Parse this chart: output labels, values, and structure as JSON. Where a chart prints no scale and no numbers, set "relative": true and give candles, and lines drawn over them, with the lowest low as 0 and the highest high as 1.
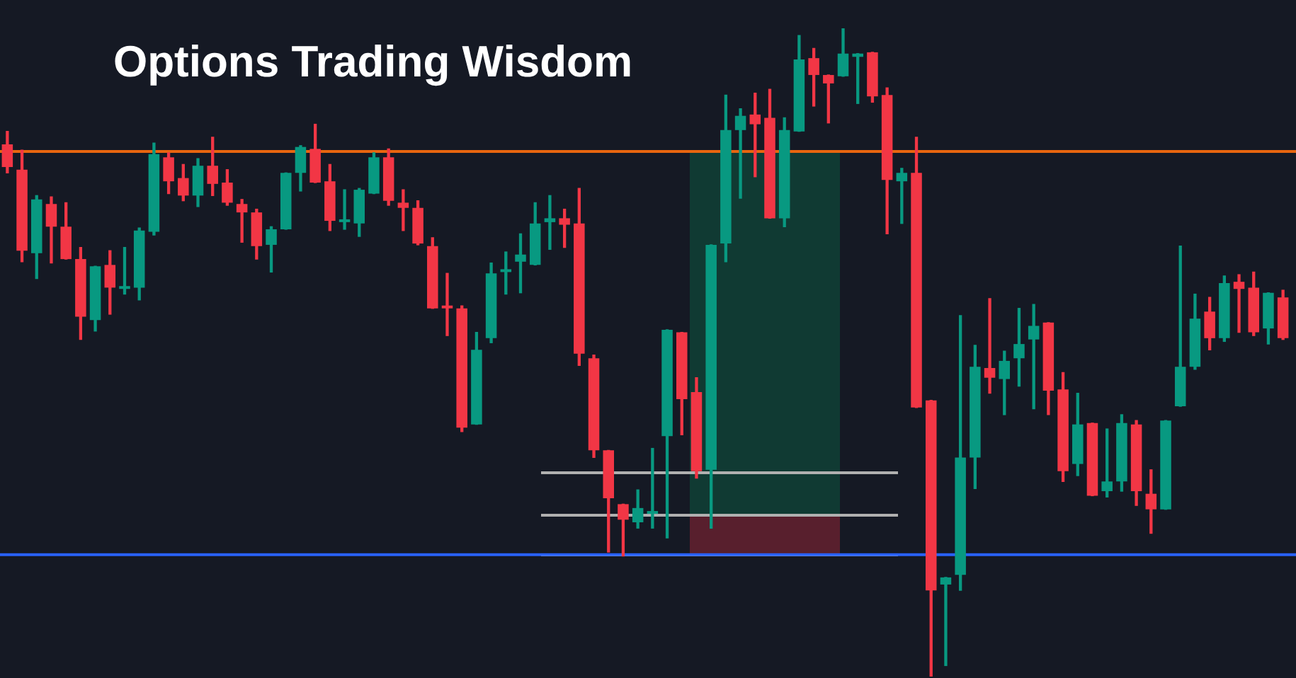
{
  "chart_data": {
    "type": "candlestick",
    "title": "Options Trading Wisdom",
    "relative": true,
    "categories": [
      null,
      null,
      null,
      null,
      null,
      null,
      null,
      null,
      null,
      null,
      null,
      null,
      null,
      null,
      null,
      null,
      null,
      null,
      null,
      null,
      null,
      null,
      null,
      null,
      null,
      null,
      null,
      null,
      null,
      null,
      null,
      null,
      null,
      null,
      null,
      null,
      null,
      null,
      null,
      null,
      null,
      null,
      null,
      null,
      null,
      null,
      null,
      null,
      null,
      null,
      null,
      null,
      null,
      null,
      null,
      null,
      null,
      null,
      null,
      null,
      null,
      null,
      null,
      null,
      null,
      null,
      null,
      null,
      null,
      null,
      null,
      null,
      null,
      null,
      null,
      null,
      null,
      null,
      null,
      null,
      null,
      null,
      null,
      null,
      null,
      null,
      null,
      null
    ],
    "ohlc": [
      [
        0.821,
        0.841,
        0.777,
        0.786
      ],
      [
        0.782,
        0.812,
        0.64,
        0.657
      ],
      [
        0.653,
        0.742,
        0.614,
        0.736
      ],
      [
        0.729,
        0.74,
        0.638,
        0.694
      ],
      [
        0.694,
        0.731,
        0.644,
        0.644
      ],
      [
        0.644,
        0.662,
        0.52,
        0.555
      ],
      [
        0.55,
        0.633,
        0.533,
        0.633
      ],
      [
        0.635,
        0.657,
        0.559,
        0.6
      ],
      [
        0.598,
        0.662,
        0.59,
        0.6
      ],
      [
        0.6,
        0.692,
        0.581,
        0.688
      ],
      [
        0.686,
        0.823,
        0.681,
        0.806
      ],
      [
        0.801,
        0.808,
        0.745,
        0.764
      ],
      [
        0.769,
        0.79,
        0.734,
        0.742
      ],
      [
        0.742,
        0.799,
        0.725,
        0.788
      ],
      [
        0.788,
        0.832,
        0.742,
        0.76
      ],
      [
        0.762,
        0.782,
        0.727,
        0.731
      ],
      [
        0.729,
        0.736,
        0.67,
        0.716
      ],
      [
        0.716,
        0.721,
        0.644,
        0.664
      ],
      [
        0.666,
        0.694,
        0.624,
        0.69
      ],
      [
        0.69,
        0.777,
        0.69,
        0.777
      ],
      [
        0.777,
        0.819,
        0.749,
        0.817
      ],
      [
        0.814,
        0.852,
        0.762,
        0.762
      ],
      [
        0.764,
        0.79,
        0.688,
        0.703
      ],
      [
        0.701,
        0.751,
        0.69,
        0.703
      ],
      [
        0.699,
        0.753,
        0.679,
        0.751
      ],
      [
        0.745,
        0.808,
        0.745,
        0.801
      ],
      [
        0.801,
        0.814,
        0.727,
        0.734
      ],
      [
        0.731,
        0.751,
        0.688,
        0.723
      ],
      [
        0.723,
        0.734,
        0.666,
        0.668
      ],
      [
        0.664,
        0.677,
        0.568,
        0.568
      ],
      [
        0.57,
        0.622,
        0.526,
        0.568
      ],
      [
        0.568,
        0.572,
        0.378,
        0.384
      ],
      [
        0.389,
        0.531,
        0.389,
        0.504
      ],
      [
        0.522,
        0.638,
        0.515,
        0.622
      ],
      [
        0.624,
        0.655,
        0.59,
        0.627
      ],
      [
        0.64,
        0.683,
        0.592,
        0.651
      ],
      [
        0.635,
        0.731,
        0.635,
        0.699
      ],
      [
        0.701,
        0.742,
        0.659,
        0.707
      ],
      [
        0.707,
        0.721,
        0.662,
        0.697
      ],
      [
        0.699,
        0.753,
        0.48,
        0.498
      ],
      [
        0.491,
        0.496,
        0.338,
        0.349
      ],
      [
        0.349,
        0.349,
        0.192,
        0.275
      ],
      [
        0.266,
        0.266,
        0.186,
        0.242
      ],
      [
        0.238,
        0.288,
        0.229,
        0.26
      ],
      [
        0.251,
        0.352,
        0.229,
        0.255
      ],
      [
        0.371,
        0.535,
        0.214,
        0.535
      ],
      [
        0.531,
        0.531,
        0.373,
        0.428
      ],
      [
        0.439,
        0.461,
        0.306,
        0.317
      ],
      [
        0.319,
        0.666,
        0.229,
        0.666
      ],
      [
        0.668,
        0.897,
        0.64,
        0.843
      ],
      [
        0.843,
        0.876,
        0.738,
        0.865
      ],
      [
        0.867,
        0.9,
        0.771,
        0.852
      ],
      [
        0.862,
        0.906,
        0.707,
        0.707
      ],
      [
        0.707,
        0.862,
        0.694,
        0.843
      ],
      [
        0.841,
        0.989,
        0.841,
        0.952
      ],
      [
        0.954,
        0.969,
        0.88,
        0.928
      ],
      [
        0.928,
        0.928,
        0.854,
        0.915
      ],
      [
        0.926,
        1,
        0.926,
        0.961
      ],
      [
        0.956,
        0.961,
        0.884,
        0.961
      ],
      [
        0.963,
        0.963,
        0.886,
        0.895
      ],
      [
        0.897,
        0.908,
        0.683,
        0.766
      ],
      [
        0.764,
        0.784,
        0.699,
        0.777
      ],
      [
        0.777,
        0.832,
        0.415,
        0.415
      ],
      [
        0.426,
        0.426,
        0,
        0.133
      ],
      [
        0.142,
        0.153,
        0.017,
        0.153
      ],
      [
        0.157,
        0.557,
        0.133,
        0.338
      ],
      [
        0.338,
        0.511,
        0.29,
        0.478
      ],
      [
        0.476,
        0.583,
        0.437,
        0.461
      ],
      [
        0.459,
        0.502,
        0.404,
        0.487
      ],
      [
        0.491,
        0.568,
        0.448,
        0.513
      ],
      [
        0.52,
        0.574,
        0.413,
        0.541
      ],
      [
        0.546,
        0.546,
        0.404,
        0.441
      ],
      [
        0.443,
        0.469,
        0.301,
        0.317
      ],
      [
        0.328,
        0.437,
        0.31,
        0.389
      ],
      [
        0.391,
        0.391,
        0.279,
        0.279
      ],
      [
        0.286,
        0.382,
        0.277,
        0.301
      ],
      [
        0.301,
        0.404,
        0.286,
        0.391
      ],
      [
        0.389,
        0.395,
        0.264,
        0.286
      ],
      [
        0.282,
        0.319,
        0.221,
        0.258
      ],
      [
        0.258,
        0.395,
        0.258,
        0.395
      ],
      [
        0.417,
        0.664,
        0.417,
        0.478
      ],
      [
        0.478,
        0.59,
        0.474,
        0.552
      ],
      [
        0.563,
        0.585,
        0.504,
        0.522
      ],
      [
        0.522,
        0.618,
        0.517,
        0.607
      ],
      [
        0.609,
        0.62,
        0.531,
        0.598
      ],
      [
        0.6,
        0.624,
        0.526,
        0.531
      ],
      [
        0.537,
        0.592,
        0.513,
        0.592
      ],
      [
        0.585,
        0.596,
        0.52,
        0.522
      ]
    ],
    "colors": [
      "#f23645",
      "#f23645",
      "#089981",
      "#f23645",
      "#f23645",
      "#f23645",
      "#089981",
      "#f23645",
      "#089981",
      "#089981",
      "#089981",
      "#f23645",
      "#f23645",
      "#089981",
      "#f23645",
      "#f23645",
      "#f23645",
      "#f23645",
      "#089981",
      "#089981",
      "#089981",
      "#f23645",
      "#f23645",
      "#089981",
      "#089981",
      "#089981",
      "#f23645",
      "#f23645",
      "#f23645",
      "#f23645",
      "#f23645",
      "#f23645",
      "#089981",
      "#089981",
      "#089981",
      "#089981",
      "#089981",
      "#089981",
      "#f23645",
      "#f23645",
      "#f23645",
      "#f23645",
      "#f23645",
      "#089981",
      "#089981",
      "#089981",
      "#f23645",
      "#f23645",
      "#089981",
      "#089981",
      "#089981",
      "#f23645",
      "#f23645",
      "#089981",
      "#089981",
      "#f23645",
      "#f23645",
      "#089981",
      "#089981",
      "#f23645",
      "#f23645",
      "#089981",
      "#f23645",
      "#f23645",
      "#089981",
      "#089981",
      "#089981",
      "#f23645",
      "#089981",
      "#089981",
      "#089981",
      "#f23645",
      "#f23645",
      "#089981",
      "#f23645",
      "#089981",
      "#089981",
      "#f23645",
      "#f23645",
      "#089981",
      "#089981",
      "#089981",
      "#f23645",
      "#089981",
      "#f23645",
      "#f23645",
      "#089981",
      "#f23645"
    ],
    "ref_lines": [
      {
        "axis": "y",
        "value": 0.81,
        "color": "#e8650f"
      },
      {
        "axis": "y",
        "value": 0.188,
        "color": "#2962ff"
      }
    ]
  }
}
